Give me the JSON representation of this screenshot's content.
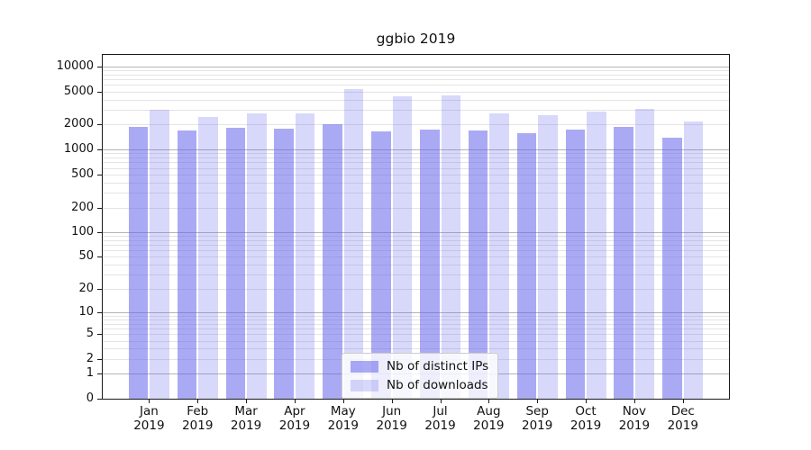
{
  "figure": {
    "title": "ggbio 2019"
  },
  "chart_data": {
    "type": "bar",
    "title": "ggbio 2019",
    "categories": [
      "Jan",
      "Feb",
      "Mar",
      "Apr",
      "May",
      "Jun",
      "Jul",
      "Aug",
      "Sep",
      "Oct",
      "Nov",
      "Dec"
    ],
    "category_year": "2019",
    "series": [
      {
        "name": "Nb of distinct IPs",
        "color": "rgba(100,100,235,0.55)",
        "values": [
          1900,
          1700,
          1830,
          1780,
          2010,
          1640,
          1740,
          1700,
          1570,
          1740,
          1890,
          1390
        ]
      },
      {
        "name": "Nb of downloads",
        "color": "rgba(100,100,235,0.25)",
        "values": [
          3000,
          2490,
          2750,
          2750,
          5300,
          4400,
          4450,
          2750,
          2570,
          2880,
          3130,
          2190
        ]
      }
    ],
    "y_axis": {
      "scale": "log1p",
      "tick_labels": [
        0,
        1,
        2,
        5,
        10,
        20,
        50,
        100,
        200,
        500,
        1000,
        2000,
        5000,
        10000
      ],
      "max_tick": 10000
    },
    "x_axis": {
      "label_line2": "2019"
    },
    "legend": {
      "entries": [
        "Nb of distinct IPs",
        "Nb of downloads"
      ],
      "location": "lower center inside"
    },
    "grid": {
      "major_color": "#b4b4b4",
      "minor_color": "#e4e4e4"
    }
  }
}
